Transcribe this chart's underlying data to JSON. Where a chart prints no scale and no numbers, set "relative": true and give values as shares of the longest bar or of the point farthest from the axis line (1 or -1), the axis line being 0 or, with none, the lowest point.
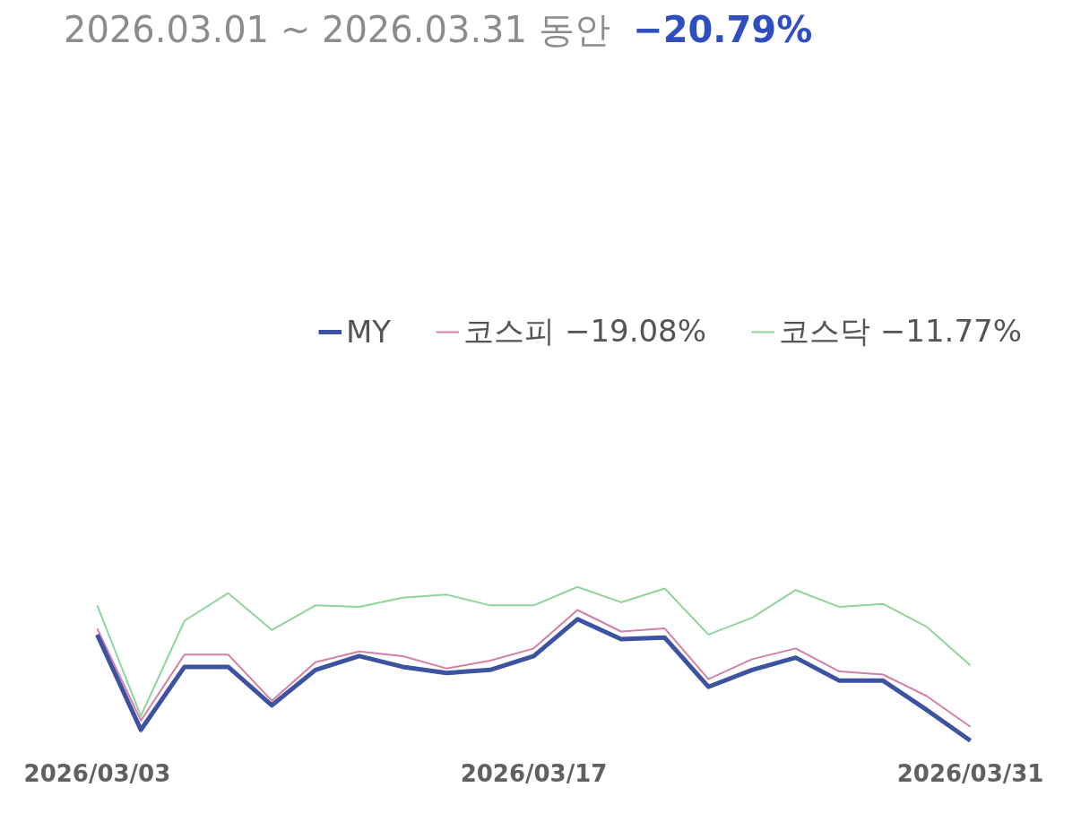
{
  "chart_data": {
    "type": "line",
    "title": "2026.03.01 ~ 2026.03.31 동안",
    "annotations": [
      "−20.79%"
    ],
    "relative": true,
    "legend": "top",
    "grid": false,
    "marker": "none",
    "line_style": "solid",
    "categories": [
      "2026/03/03",
      null,
      null,
      null,
      null,
      null,
      null,
      null,
      null,
      null,
      "2026/03/17",
      null,
      null,
      null,
      null,
      null,
      null,
      null,
      null,
      null,
      "2026/03/31"
    ],
    "series": [
      {
        "name": "MY",
        "color": "#3d52a0",
        "values": [
          0.69,
          0.07,
          0.48,
          0.48,
          0.23,
          0.46,
          0.55,
          0.48,
          0.44,
          0.46,
          0.55,
          0.79,
          0.66,
          0.67,
          0.35,
          0.46,
          0.54,
          0.39,
          0.39,
          0.2,
          0
        ]
      },
      {
        "name": "코스피 −19.08%",
        "color": "#d47fa6",
        "values": [
          0.73,
          0.13,
          0.56,
          0.56,
          0.26,
          0.51,
          0.58,
          0.55,
          0.47,
          0.52,
          0.6,
          0.85,
          0.71,
          0.73,
          0.4,
          0.53,
          0.6,
          0.45,
          0.43,
          0.29,
          0.09
        ]
      },
      {
        "name": "코스닥 −11.77%",
        "color": "#8fd49c",
        "values": [
          0.88,
          0.16,
          0.78,
          0.96,
          0.72,
          0.88,
          0.87,
          0.93,
          0.95,
          0.88,
          0.88,
          1.0,
          0.9,
          0.99,
          0.69,
          0.8,
          0.98,
          0.87,
          0.89,
          0.74,
          0.49
        ]
      }
    ]
  }
}
